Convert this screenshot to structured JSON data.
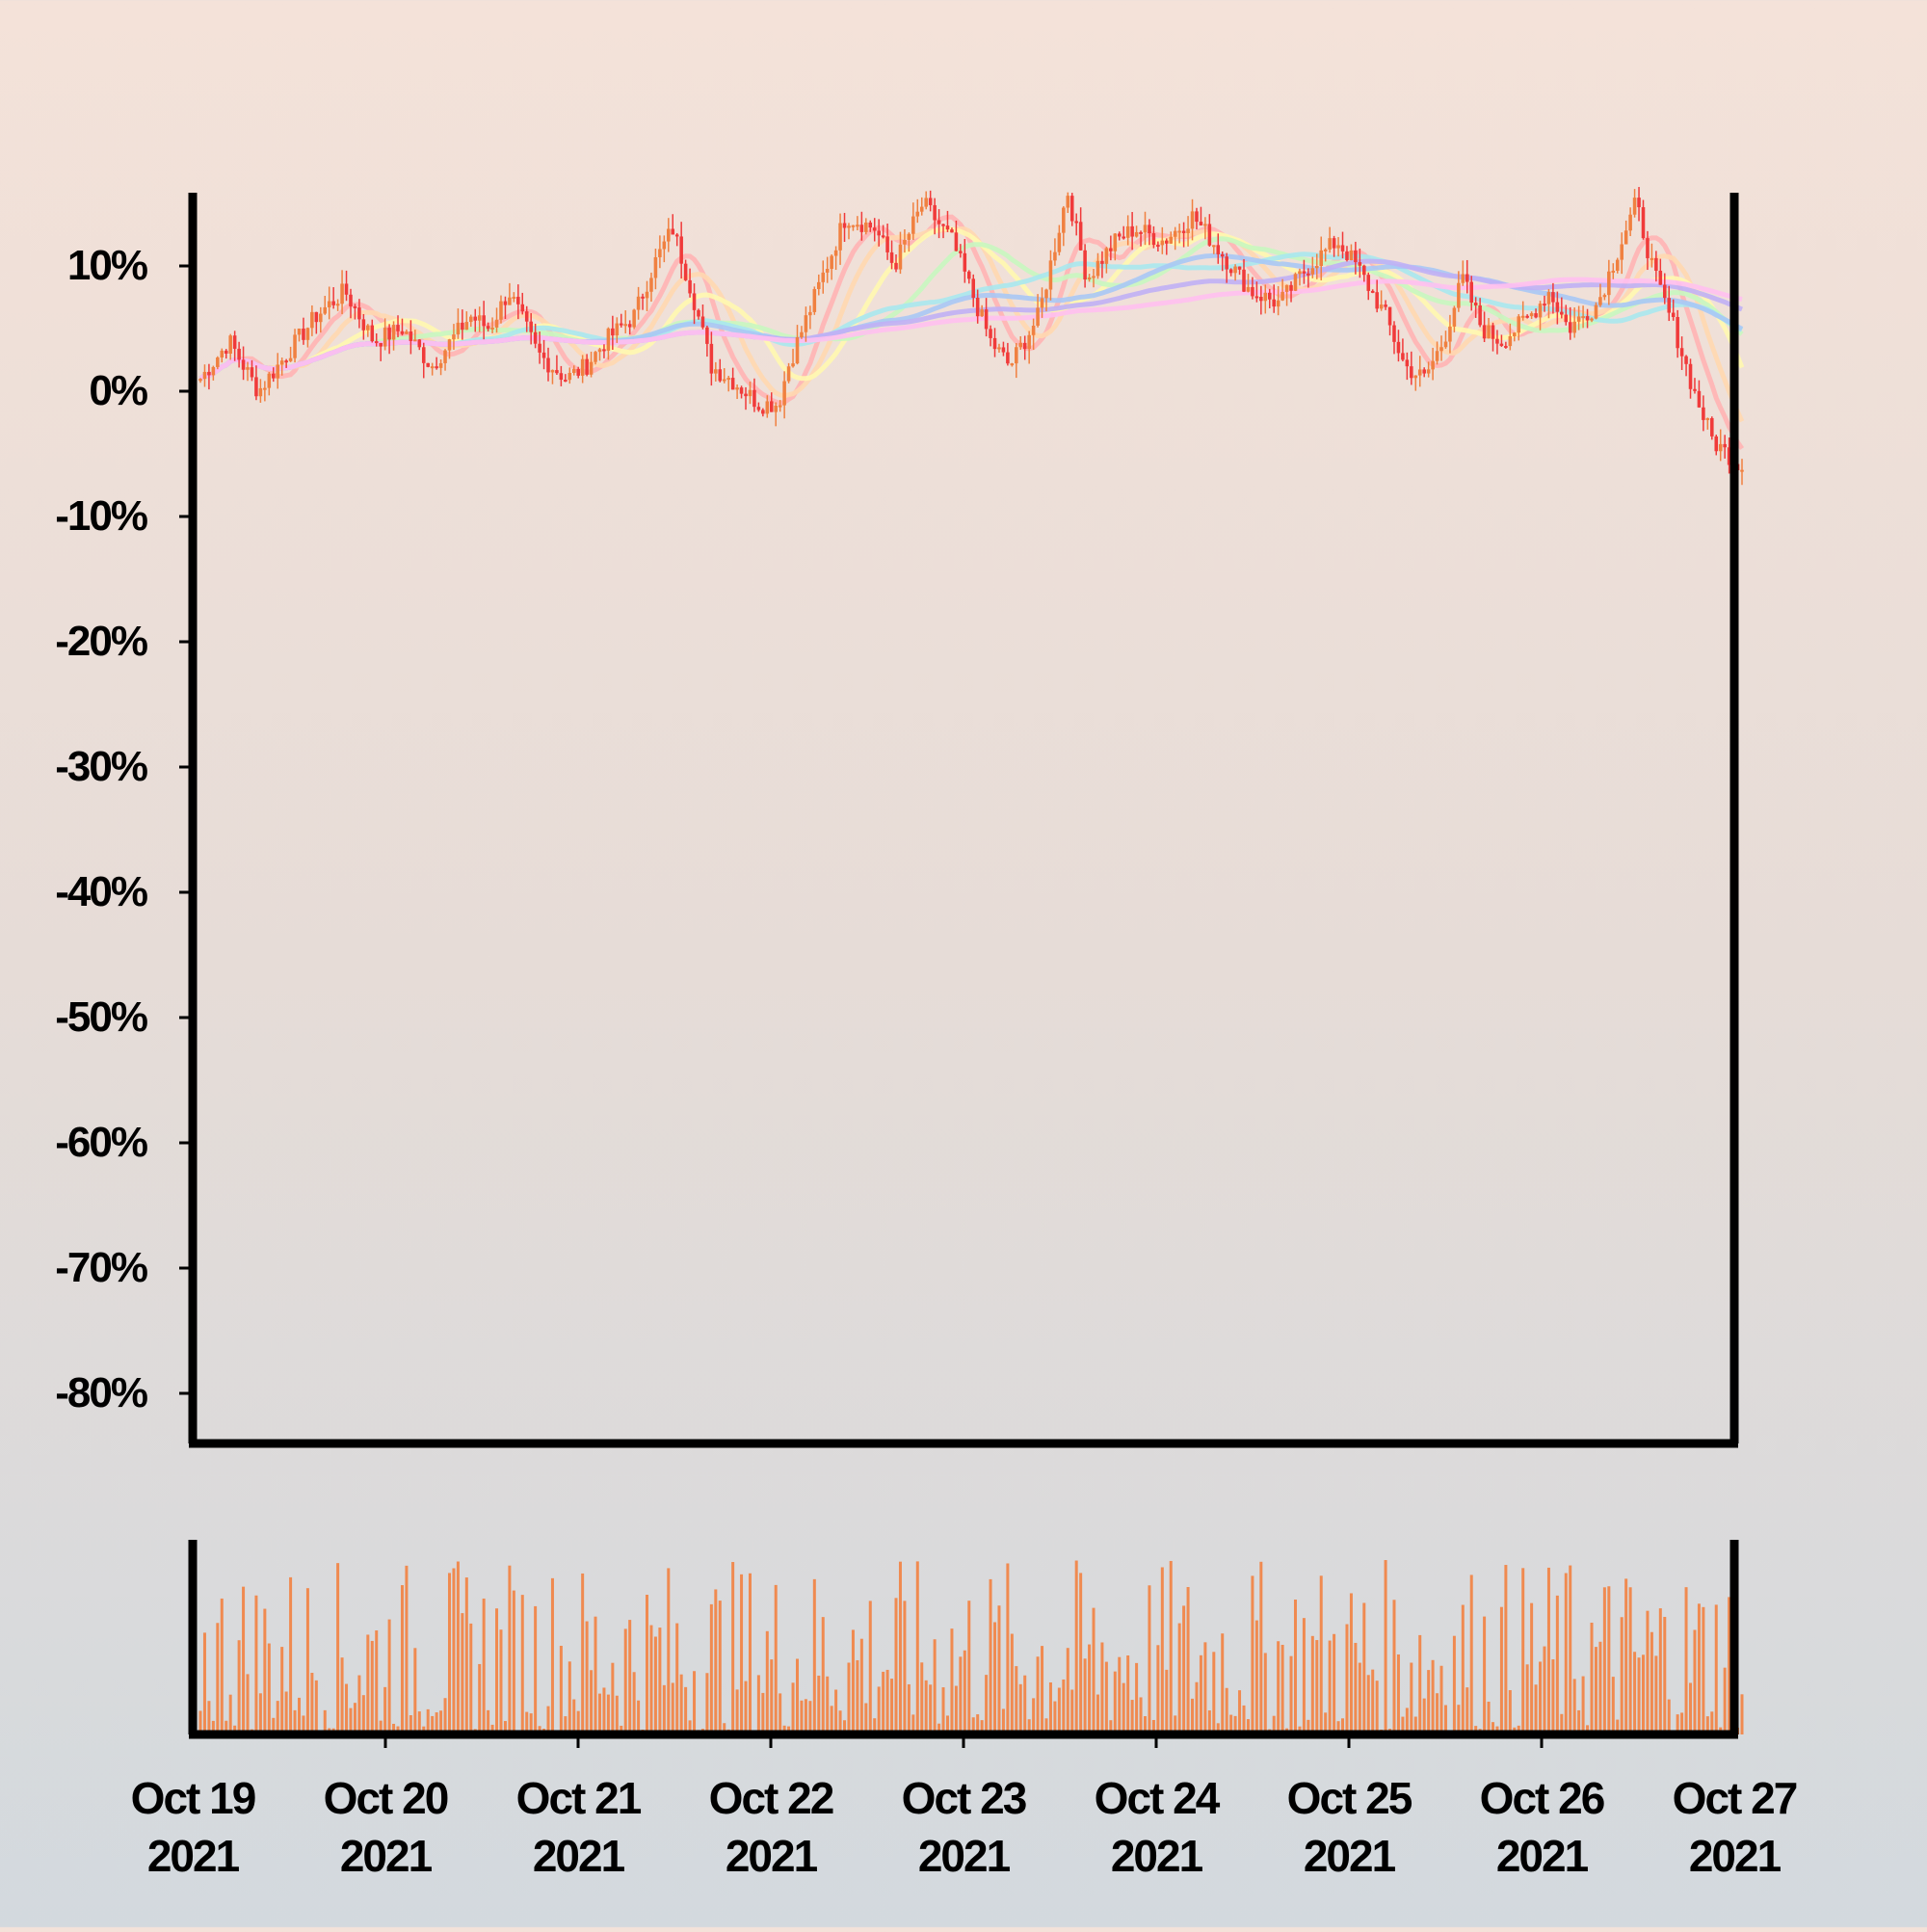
{
  "chart_data": {
    "type": "candlestick",
    "price_panel": {
      "y_ticks": [
        {
          "value": 10,
          "label": "10%"
        },
        {
          "value": 0,
          "label": "0%"
        },
        {
          "value": -10,
          "label": "-10%"
        },
        {
          "value": -20,
          "label": "-20%"
        },
        {
          "value": -30,
          "label": "-30%"
        },
        {
          "value": -40,
          "label": "-40%"
        },
        {
          "value": -50,
          "label": "-50%"
        },
        {
          "value": -60,
          "label": "-60%"
        },
        {
          "value": -70,
          "label": "-70%"
        },
        {
          "value": -80,
          "label": "-80%"
        }
      ],
      "ylim": [
        -84,
        16
      ],
      "up_color": "#f08040",
      "down_color": "#f03a3a",
      "close_path_percent": [
        [
          0,
          1
        ],
        [
          0.15,
          4
        ],
        [
          0.3,
          0
        ],
        [
          0.45,
          3
        ],
        [
          0.6,
          6
        ],
        [
          0.75,
          8
        ],
        [
          0.9,
          4
        ],
        [
          1.05,
          5
        ],
        [
          1.2,
          2
        ],
        [
          1.4,
          6
        ],
        [
          1.5,
          5
        ],
        [
          1.6,
          8
        ],
        [
          1.75,
          3
        ],
        [
          1.9,
          1
        ],
        [
          2.0,
          2
        ],
        [
          2.1,
          4
        ],
        [
          2.25,
          6
        ],
        [
          2.35,
          10
        ],
        [
          2.45,
          13
        ],
        [
          2.55,
          8
        ],
        [
          2.65,
          2
        ],
        [
          2.75,
          1
        ],
        [
          2.9,
          -1
        ],
        [
          3.0,
          -1
        ],
        [
          3.05,
          2
        ],
        [
          3.15,
          6
        ],
        [
          3.25,
          10
        ],
        [
          3.35,
          14
        ],
        [
          3.5,
          13
        ],
        [
          3.6,
          10
        ],
        [
          3.75,
          15
        ],
        [
          3.9,
          12
        ],
        [
          4.0,
          8
        ],
        [
          4.1,
          4
        ],
        [
          4.2,
          2
        ],
        [
          4.35,
          6
        ],
        [
          4.5,
          16
        ],
        [
          4.6,
          9
        ],
        [
          4.75,
          12
        ],
        [
          4.85,
          13
        ],
        [
          5.0,
          12
        ],
        [
          5.15,
          14
        ],
        [
          5.3,
          11
        ],
        [
          5.45,
          8
        ],
        [
          5.6,
          7
        ],
        [
          5.75,
          10
        ],
        [
          5.9,
          12
        ],
        [
          6.0,
          10
        ],
        [
          6.15,
          6
        ],
        [
          6.25,
          2
        ],
        [
          6.35,
          1
        ],
        [
          6.45,
          4
        ],
        [
          6.55,
          9
        ],
        [
          6.65,
          5
        ],
        [
          6.75,
          4
        ],
        [
          6.9,
          6
        ],
        [
          7.0,
          8
        ],
        [
          7.1,
          5
        ],
        [
          7.25,
          7
        ],
        [
          7.35,
          11
        ],
        [
          7.45,
          15
        ],
        [
          7.55,
          9
        ],
        [
          7.65,
          5
        ],
        [
          7.75,
          0
        ],
        [
          7.85,
          -4
        ],
        [
          8.0,
          -6
        ]
      ],
      "ma_colors": [
        "#ffb4b4",
        "#ffd8b0",
        "#fff8b0",
        "#c8f7c0",
        "#a8e8ee",
        "#a8c8f5",
        "#c0b0f5",
        "#ffc0f0"
      ],
      "ma_windows": [
        10,
        16,
        25,
        40,
        60,
        90,
        130,
        180
      ]
    },
    "volume_panel": {
      "bar_color": "#f08a50",
      "note": "volume bars, unlabeled axis"
    },
    "x_ticks": [
      {
        "line1": "Oct 19",
        "line2": "2021"
      },
      {
        "line1": "Oct 20",
        "line2": "2021"
      },
      {
        "line1": "Oct 21",
        "line2": "2021"
      },
      {
        "line1": "Oct 22",
        "line2": "2021"
      },
      {
        "line1": "Oct 23",
        "line2": "2021"
      },
      {
        "line1": "Oct 24",
        "line2": "2021"
      },
      {
        "line1": "Oct 25",
        "line2": "2021"
      },
      {
        "line1": "Oct 26",
        "line2": "2021"
      },
      {
        "line1": "Oct 27",
        "line2": "2021"
      }
    ],
    "grid": false,
    "legend": "none"
  }
}
